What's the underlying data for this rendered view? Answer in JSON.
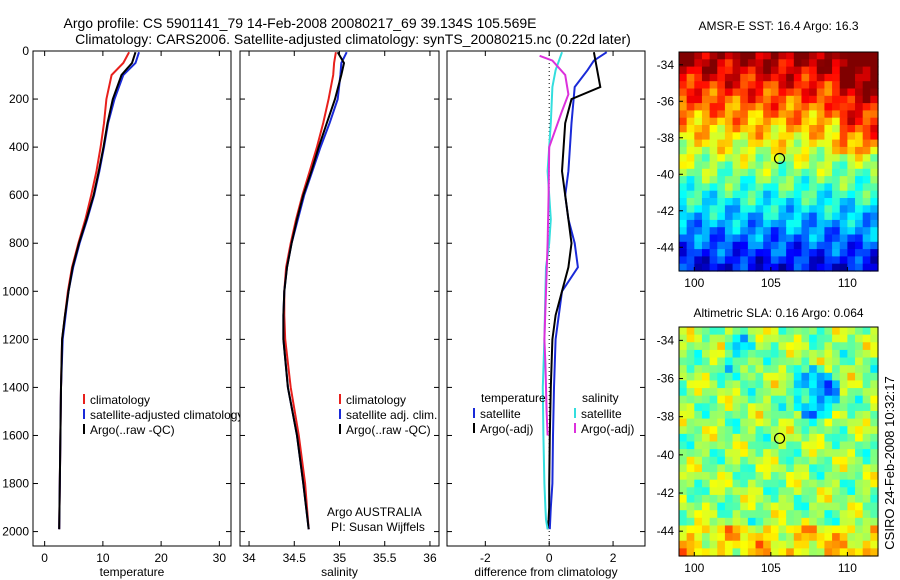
{
  "header": {
    "title_line1": "Argo profile: CS 5901141_79 14-Feb-2008 20080217_69 39.134S 105.569E",
    "title_line2": "Climatology: CARS2006. Satellite-adjusted climatology: synTS_20080215.nc (0.22d later)"
  },
  "side_caption": "CSIRO 24-Feb-2008 10:32:17",
  "colors": {
    "climatology": "#e8201c",
    "satellite": "#1a2ad8",
    "argo": "#000000",
    "salinity_satellite": "#33dede",
    "salinity_argo": "#dc30dc"
  },
  "chart_data": [
    {
      "id": "temperature",
      "type": "line",
      "xlabel": "temperature",
      "ylabel": "",
      "xlim": [
        -2,
        32
      ],
      "ylim": [
        2060,
        0
      ],
      "xticks": [
        "0",
        "10",
        "20",
        "30"
      ],
      "yticks": [
        "0",
        "200",
        "400",
        "600",
        "800",
        "1000",
        "1200",
        "1400",
        "1600",
        "1800",
        "2000"
      ],
      "series": [
        {
          "name": "climatology",
          "color": "#e8201c",
          "x": [
            14.5,
            13.5,
            11.5,
            10.6,
            10.2,
            9.6,
            8.9,
            8.0,
            7.0,
            5.8,
            4.7,
            4.0,
            3.5,
            3.0,
            2.8,
            2.7,
            2.6,
            2.5
          ],
          "y": [
            5,
            50,
            100,
            200,
            300,
            400,
            500,
            600,
            700,
            800,
            900,
            1000,
            1100,
            1200,
            1400,
            1600,
            1800,
            1990
          ]
        },
        {
          "name": "satellite-adjusted climatology",
          "color": "#1a2ad8",
          "x": [
            16.2,
            15.6,
            13.5,
            12.0,
            10.9,
            10.2,
            9.4,
            8.5,
            7.3,
            6.0,
            4.9,
            4.1,
            3.6,
            3.1,
            2.8,
            2.7,
            2.6,
            2.5
          ],
          "y": [
            5,
            50,
            100,
            200,
            300,
            400,
            500,
            600,
            700,
            800,
            900,
            1000,
            1100,
            1200,
            1400,
            1600,
            1800,
            1990
          ]
        },
        {
          "name": "Argo(..raw -QC)",
          "color": "#000000",
          "x": [
            15.6,
            15.0,
            13.2,
            11.7,
            10.8,
            10.1,
            9.3,
            8.4,
            7.2,
            5.9,
            4.8,
            4.1,
            3.5,
            3.0,
            2.8,
            2.7,
            2.6,
            2.5
          ],
          "y": [
            5,
            50,
            100,
            200,
            300,
            400,
            500,
            600,
            700,
            800,
            900,
            1000,
            1100,
            1200,
            1400,
            1600,
            1800,
            1990
          ]
        }
      ],
      "legend": [
        "climatology",
        "satellite-adjusted climatology",
        "Argo(..raw -QC)"
      ]
    },
    {
      "id": "salinity",
      "type": "line",
      "xlabel": "salinity",
      "ylabel": "",
      "xlim": [
        33.9,
        36.1
      ],
      "ylim": [
        2060,
        0
      ],
      "xticks": [
        "34",
        "34.5",
        "35",
        "35.5",
        "36"
      ],
      "series": [
        {
          "name": "climatology",
          "color": "#e8201c",
          "x": [
            34.96,
            34.94,
            34.93,
            34.88,
            34.82,
            34.75,
            34.67,
            34.59,
            34.52,
            34.46,
            34.41,
            34.39,
            34.39,
            34.4,
            34.46,
            34.55,
            34.62,
            34.66
          ],
          "y": [
            5,
            50,
            100,
            200,
            300,
            400,
            500,
            600,
            700,
            800,
            900,
            1000,
            1100,
            1200,
            1400,
            1600,
            1800,
            1990
          ]
        },
        {
          "name": "satellite adj. clim.",
          "color": "#1a2ad8",
          "x": [
            35.08,
            35.02,
            35.01,
            34.98,
            34.89,
            34.79,
            34.7,
            34.61,
            34.54,
            34.47,
            34.42,
            34.39,
            34.38,
            34.38,
            34.43,
            34.53,
            34.6,
            34.66
          ],
          "y": [
            5,
            50,
            100,
            200,
            300,
            400,
            500,
            600,
            700,
            800,
            900,
            1000,
            1100,
            1200,
            1400,
            1600,
            1800,
            1990
          ]
        },
        {
          "name": "Argo(..raw -QC)",
          "color": "#000000",
          "x": [
            34.98,
            35.05,
            35.02,
            34.95,
            34.86,
            34.77,
            34.69,
            34.6,
            34.53,
            34.47,
            34.42,
            34.39,
            34.38,
            34.38,
            34.43,
            34.53,
            34.6,
            34.66
          ],
          "y": [
            5,
            50,
            100,
            200,
            300,
            400,
            500,
            600,
            700,
            800,
            900,
            1000,
            1100,
            1200,
            1400,
            1600,
            1800,
            1990
          ]
        }
      ],
      "legend": [
        "climatology",
        "satellite adj. clim.",
        "Argo(..raw -QC)"
      ],
      "annotation": [
        "Argo AUSTRALIA",
        "PI: Susan Wijffels"
      ]
    },
    {
      "id": "difference",
      "type": "line",
      "xlabel": "difference from climatology",
      "ylabel": "",
      "xlim": [
        -3.2,
        3.0
      ],
      "ylim": [
        2060,
        0
      ],
      "xticks": [
        "-2",
        "0",
        "2"
      ],
      "zero_line": true,
      "series": [
        {
          "name": "temperature satellite",
          "color": "#1a2ad8",
          "x": [
            1.8,
            1.4,
            1.2,
            0.8,
            0.7,
            0.6,
            0.5,
            0.6,
            0.8,
            0.9,
            0.4,
            0.3,
            0.2,
            0.15,
            0.12,
            0.1,
            0.05,
            0.02
          ],
          "y": [
            5,
            40,
            80,
            150,
            300,
            500,
            600,
            700,
            800,
            900,
            1000,
            1100,
            1200,
            1400,
            1600,
            1800,
            1900,
            1990
          ]
        },
        {
          "name": "temperature Argo(-adj)",
          "color": "#000000",
          "x": [
            1.4,
            1.6,
            0.7,
            0.5,
            0.4,
            0.5,
            0.6,
            0.7,
            0.6,
            0.4,
            0.2,
            0.1,
            0.05,
            0.02,
            0.0,
            0.0,
            -0.02,
            -0.05
          ],
          "y": [
            5,
            150,
            200,
            300,
            500,
            600,
            700,
            800,
            900,
            1000,
            1100,
            1200,
            1400,
            1600,
            1800,
            1900,
            1950,
            1990
          ]
        },
        {
          "name": "salinity satellite",
          "color": "#33dede",
          "x": [
            0.4,
            0.2,
            0.1,
            0.05,
            0.0,
            -0.05,
            0.0,
            0.05,
            0.0,
            -0.1,
            -0.12,
            -0.15,
            -0.2,
            -0.18,
            -0.15,
            -0.12,
            -0.1,
            -0.05
          ],
          "y": [
            5,
            80,
            150,
            300,
            400,
            500,
            600,
            700,
            800,
            900,
            1000,
            1200,
            1400,
            1600,
            1800,
            1900,
            1950,
            1990
          ]
        },
        {
          "name": "salinity Argo(-adj)",
          "color": "#dc30dc",
          "x": [
            -0.3,
            0.1,
            0.5,
            0.6,
            0.4,
            0.0,
            -0.02,
            -0.05,
            -0.1,
            -0.15,
            -0.12,
            -0.1,
            -0.08,
            -0.05
          ],
          "y": [
            20,
            40,
            100,
            180,
            250,
            400,
            600,
            800,
            1000,
            1200,
            1300,
            1400,
            1500,
            1600
          ]
        }
      ],
      "legend_columns": [
        {
          "heading": "temperature",
          "items": [
            "satellite",
            "Argo(-adj)"
          ]
        },
        {
          "heading": "salinity",
          "items": [
            "satellite",
            "Argo(-adj)"
          ]
        }
      ]
    },
    {
      "id": "sst_map",
      "type": "heatmap",
      "title": "AMSR-E SST: 16.4  Argo: 16.3",
      "xlim": [
        99,
        112
      ],
      "ylim": [
        -45.3,
        -33.3
      ],
      "xticks": [
        "100",
        "105",
        "110"
      ],
      "yticks": [
        "-34",
        "-36",
        "-38",
        "-40",
        "-42",
        "-44"
      ],
      "marker": {
        "lon": 105.569,
        "lat": -39.134
      },
      "colormap": "jet",
      "description_values": {
        "sst_at_float": 16.4,
        "argo": 16.3
      }
    },
    {
      "id": "sla_map",
      "type": "heatmap",
      "title": "Altimetric SLA: 0.16  Argo: 0.064",
      "xlim": [
        99,
        112
      ],
      "ylim": [
        -45.3,
        -33.3
      ],
      "xticks": [
        "100",
        "105",
        "110"
      ],
      "yticks": [
        "-34",
        "-36",
        "-38",
        "-40",
        "-42",
        "-44"
      ],
      "marker": {
        "lon": 105.569,
        "lat": -39.134
      },
      "colormap": "jet",
      "description_values": {
        "sla_at_float": 0.16,
        "argo": 0.064
      }
    }
  ]
}
